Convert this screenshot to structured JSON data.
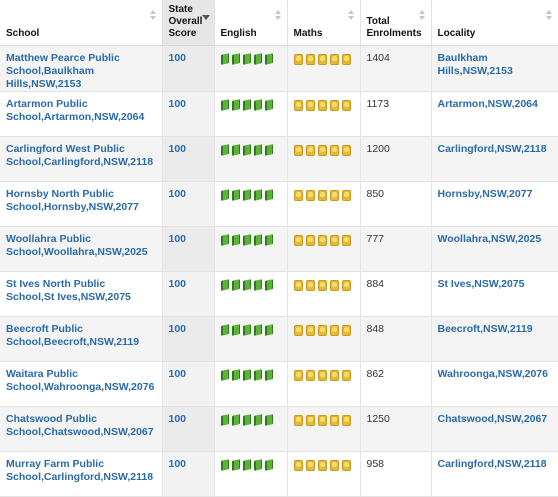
{
  "table": {
    "headers": {
      "school": "School",
      "score": "State Overall Score",
      "english": "English",
      "maths": "Maths",
      "enrolments": "Total Enrolments",
      "locality": "Locality"
    },
    "english_icon": "book-icon",
    "maths_icon": "abacus-icon",
    "english_rating": 5,
    "maths_rating": 5,
    "rows": [
      {
        "school": "Matthew Pearce Public School,Baulkham Hills,NSW,2153",
        "score": "100",
        "enrolments": "1404",
        "locality": "Baulkham Hills,NSW,2153"
      },
      {
        "school": "Artarmon Public School,Artarmon,NSW,2064",
        "score": "100",
        "enrolments": "1173",
        "locality": "Artarmon,NSW,2064"
      },
      {
        "school": "Carlingford West Public School,Carlingford,NSW,2118",
        "score": "100",
        "enrolments": "1200",
        "locality": "Carlingford,NSW,2118"
      },
      {
        "school": "Hornsby North Public School,Hornsby,NSW,2077",
        "score": "100",
        "enrolments": "850",
        "locality": "Hornsby,NSW,2077"
      },
      {
        "school": "Woollahra Public School,Woollahra,NSW,2025",
        "score": "100",
        "enrolments": "777",
        "locality": "Woollahra,NSW,2025"
      },
      {
        "school": "St Ives North Public School,St Ives,NSW,2075",
        "score": "100",
        "enrolments": "884",
        "locality": "St Ives,NSW,2075"
      },
      {
        "school": "Beecroft Public School,Beecroft,NSW,2119",
        "score": "100",
        "enrolments": "848",
        "locality": "Beecroft,NSW,2119"
      },
      {
        "school": "Waitara Public School,Wahroonga,NSW,2076",
        "score": "100",
        "enrolments": "862",
        "locality": "Wahroonga,NSW,2076"
      },
      {
        "school": "Chatswood Public School,Chatswood,NSW,2067",
        "score": "100",
        "enrolments": "1250",
        "locality": "Chatswood,NSW,2067"
      },
      {
        "school": "Murray Farm Public School,Carlingford,NSW,2118",
        "score": "100",
        "enrolments": "958",
        "locality": "Carlingford,NSW,2118"
      }
    ]
  }
}
